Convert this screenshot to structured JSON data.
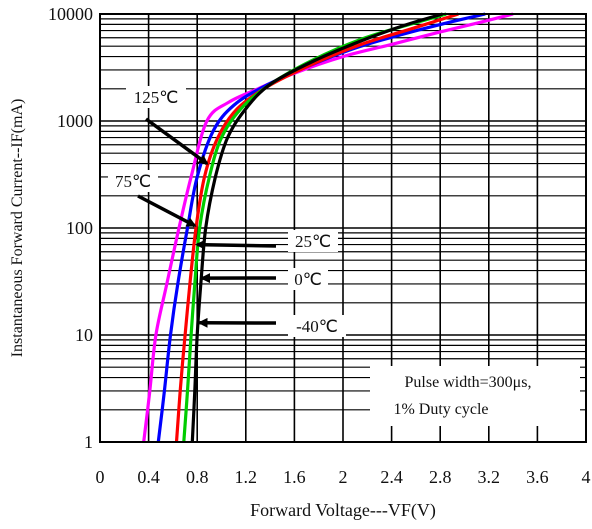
{
  "chart_data": {
    "type": "line",
    "title": "",
    "xlabel": "Forward Voltage---VF(V)",
    "ylabel": "Instantaneous Forward Current--IF(mA)",
    "xlim": [
      0,
      4
    ],
    "ylim": [
      1,
      10000
    ],
    "yscale": "log",
    "x_ticks": [
      "0",
      "0.4",
      "0.8",
      "1.2",
      "1.6",
      "2",
      "2.4",
      "2.8",
      "3.2",
      "3.6",
      "4"
    ],
    "y_ticks": [
      "1",
      "10",
      "100",
      "1000",
      "10000"
    ],
    "grid": true,
    "series": [
      {
        "name": "125℃",
        "color": "#ff00ff",
        "points": [
          [
            0.36,
            1
          ],
          [
            0.41,
            3
          ],
          [
            0.46,
            10
          ],
          [
            0.55,
            30
          ],
          [
            0.65,
            100
          ],
          [
            0.75,
            300
          ],
          [
            0.88,
            1000
          ],
          [
            1.06,
            1500
          ],
          [
            1.3,
            2000
          ],
          [
            1.6,
            2800
          ],
          [
            2.0,
            4000
          ],
          [
            2.4,
            5200
          ],
          [
            2.8,
            6800
          ],
          [
            3.1,
            8200
          ],
          [
            3.4,
            10000
          ]
        ]
      },
      {
        "name": "75℃",
        "color": "#0000ff",
        "points": [
          [
            0.48,
            1
          ],
          [
            0.53,
            3
          ],
          [
            0.58,
            10
          ],
          [
            0.64,
            30
          ],
          [
            0.72,
            100
          ],
          [
            0.8,
            300
          ],
          [
            0.93,
            800
          ],
          [
            1.1,
            1400
          ],
          [
            1.35,
            2100
          ],
          [
            1.7,
            3200
          ],
          [
            2.1,
            4800
          ],
          [
            2.5,
            6500
          ],
          [
            2.9,
            8500
          ],
          [
            3.17,
            10000
          ]
        ]
      },
      {
        "name": "25℃",
        "color": "#ff0000",
        "points": [
          [
            0.63,
            1
          ],
          [
            0.66,
            3
          ],
          [
            0.7,
            10
          ],
          [
            0.74,
            30
          ],
          [
            0.79,
            100
          ],
          [
            0.86,
            300
          ],
          [
            0.97,
            700
          ],
          [
            1.13,
            1300
          ],
          [
            1.38,
            2100
          ],
          [
            1.75,
            3400
          ],
          [
            2.15,
            5200
          ],
          [
            2.55,
            7200
          ],
          [
            2.95,
            10000
          ]
        ]
      },
      {
        "name": "0℃",
        "color": "#00cc00",
        "points": [
          [
            0.69,
            1
          ],
          [
            0.72,
            3
          ],
          [
            0.75,
            10
          ],
          [
            0.78,
            30
          ],
          [
            0.82,
            100
          ],
          [
            0.9,
            300
          ],
          [
            1.0,
            700
          ],
          [
            1.16,
            1300
          ],
          [
            1.4,
            2200
          ],
          [
            1.75,
            3700
          ],
          [
            2.15,
            5800
          ],
          [
            2.55,
            8000
          ],
          [
            2.85,
            10000
          ]
        ]
      },
      {
        "name": "-40℃",
        "color": "#000000",
        "points": [
          [
            0.76,
            1
          ],
          [
            0.78,
            3
          ],
          [
            0.8,
            10
          ],
          [
            0.83,
            30
          ],
          [
            0.87,
            100
          ],
          [
            0.95,
            300
          ],
          [
            1.05,
            700
          ],
          [
            1.2,
            1300
          ],
          [
            1.4,
            2200
          ],
          [
            1.75,
            3600
          ],
          [
            2.15,
            5600
          ],
          [
            2.5,
            7800
          ],
          [
            2.82,
            10000
          ]
        ]
      }
    ],
    "annotations": [
      {
        "text": "125℃",
        "target": [
          0.88,
          400
        ]
      },
      {
        "text": "75℃",
        "target": [
          0.78,
          105
        ]
      },
      {
        "text": "25℃",
        "target": [
          0.8,
          70
        ]
      },
      {
        "text": "0℃",
        "target": [
          0.84,
          34
        ]
      },
      {
        "text": "-40℃",
        "target": [
          0.82,
          13
        ]
      }
    ],
    "note_lines": [
      "Pulse width=300μs,",
      "1% Duty cycle"
    ]
  }
}
